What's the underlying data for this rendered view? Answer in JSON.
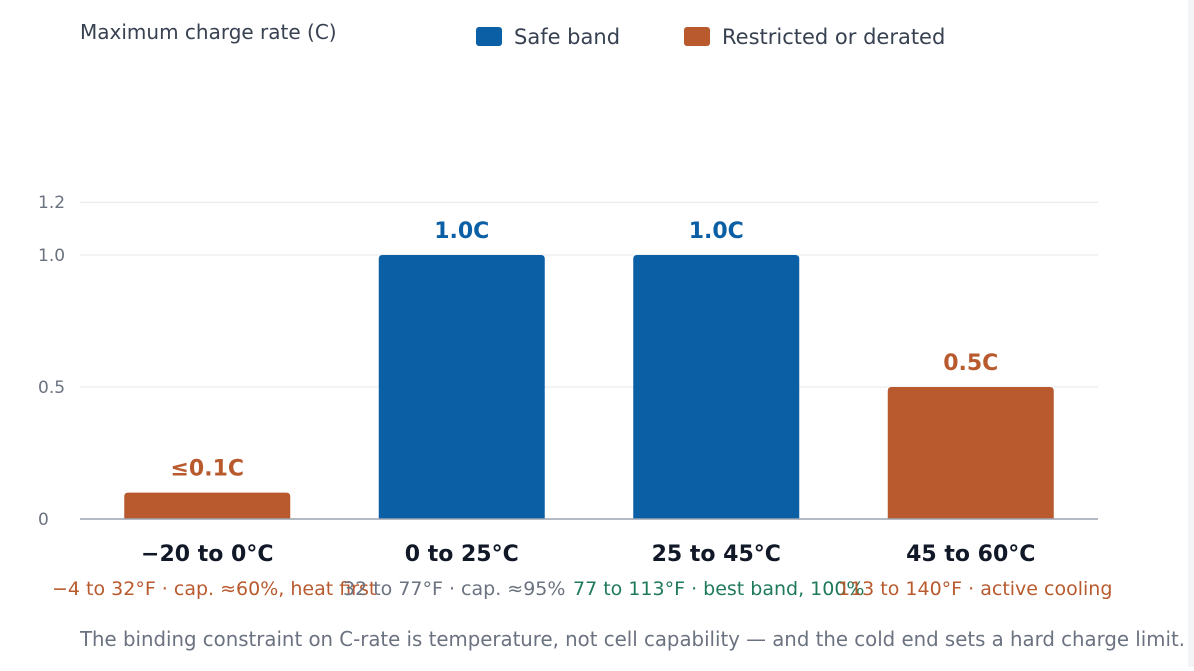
{
  "chart_data": {
    "type": "bar",
    "ylabel": "Maximum charge rate (C)",
    "ylim": [
      0,
      1.2
    ],
    "yticks": [
      {
        "value": 0,
        "label": "0"
      },
      {
        "value": 0.5,
        "label": "0.5"
      },
      {
        "value": 1.0,
        "label": "1.0"
      },
      {
        "value": 1.2,
        "label": "1.2"
      }
    ],
    "grid": true,
    "legend_position": "top",
    "legend": [
      {
        "label": "Safe band",
        "color": "#0b5fa5"
      },
      {
        "label": "Restricted or derated",
        "color": "#b85a2e"
      }
    ],
    "categories": [
      "−20 to 0°C",
      "0 to 25°C",
      "25 to 45°C",
      "45 to 60°C"
    ],
    "values": [
      0.1,
      1.0,
      1.0,
      0.5
    ],
    "bar_status": [
      "restricted",
      "safe",
      "safe",
      "restricted"
    ],
    "data_labels": [
      "≤0.1C",
      "1.0C",
      "1.0C",
      "0.5C"
    ],
    "notes": [
      {
        "text": "−4 to 32°F · cap. ≈60%, heat first",
        "color": "#b85a2e"
      },
      {
        "text": "32 to 77°F · cap. ≈95%",
        "color": "#6b7280"
      },
      {
        "text": "77 to 113°F · best band, 100%",
        "color": "#1f7a5a"
      },
      {
        "text": "113 to 140°F · active cooling",
        "color": "#b85a2e"
      }
    ],
    "footnote": "The binding constraint on C-rate is temperature, not cell capability — and the cold end sets a hard charge limit."
  },
  "colors": {
    "safe": "#0b5fa5",
    "restricted": "#b85a2e",
    "grid": "#e5e7eb",
    "axis": "#9ca3af",
    "tick_text": "#6b7280",
    "category_text": "#111827",
    "title_text": "#374151"
  }
}
